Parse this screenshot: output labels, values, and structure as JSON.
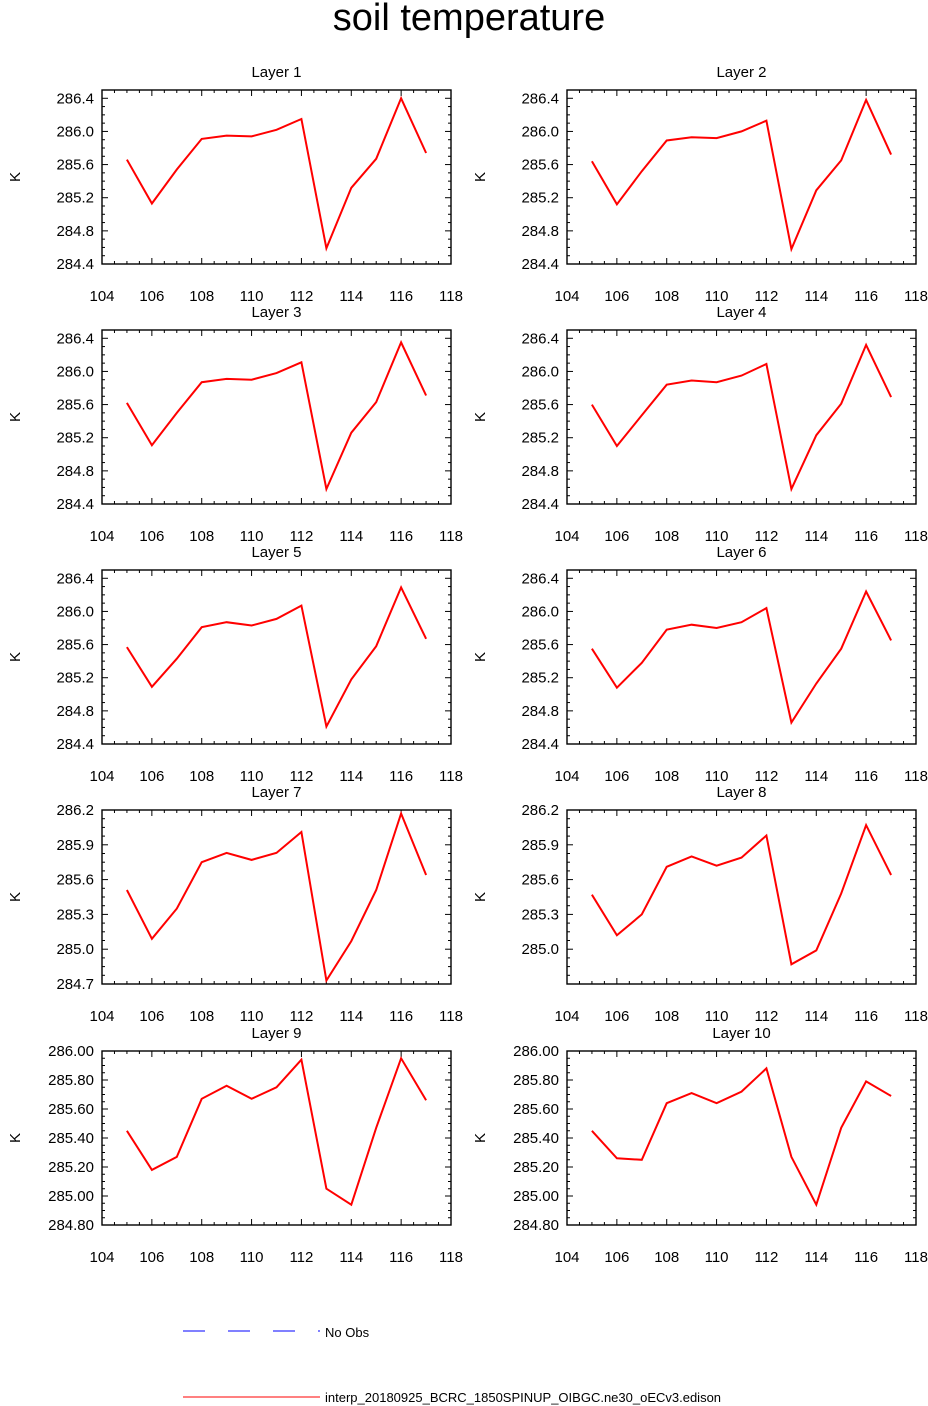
{
  "title": "soil temperature",
  "colors": {
    "model": "#ff0000",
    "obs": "#0000ff"
  },
  "legend": {
    "obs_label": "No Obs",
    "model_label": "interp_20180925_BCRC_1850SPINUP_OIBGC.ne30_oECv3.edison"
  },
  "chart_data": [
    {
      "type": "line",
      "title": "Layer 1",
      "ylabel": "K",
      "xlabel": "",
      "xlim": [
        104,
        118
      ],
      "ylim": [
        284.4,
        286.5
      ],
      "xticks": [
        104,
        106,
        108,
        110,
        112,
        114,
        116,
        118
      ],
      "yticks": [
        284.4,
        284.8,
        285.2,
        285.6,
        286.0,
        286.4
      ],
      "ydec": 1,
      "series": [
        {
          "name": "interp_20180925_BCRC_1850SPINUP_OIBGC.ne30_oECv3.edison",
          "x": [
            105,
            106,
            107,
            108,
            109,
            110,
            111,
            112,
            113,
            114,
            115,
            116,
            117
          ],
          "values": [
            285.66,
            285.13,
            285.54,
            285.91,
            285.95,
            285.94,
            286.02,
            286.15,
            284.59,
            285.32,
            285.67,
            286.4,
            285.74
          ]
        }
      ]
    },
    {
      "type": "line",
      "title": "Layer 2",
      "ylabel": "K",
      "xlabel": "",
      "xlim": [
        104,
        118
      ],
      "ylim": [
        284.4,
        286.5
      ],
      "xticks": [
        104,
        106,
        108,
        110,
        112,
        114,
        116,
        118
      ],
      "yticks": [
        284.4,
        284.8,
        285.2,
        285.6,
        286.0,
        286.4
      ],
      "ydec": 1,
      "series": [
        {
          "name": "interp_20180925_BCRC_1850SPINUP_OIBGC.ne30_oECv3.edison",
          "x": [
            105,
            106,
            107,
            108,
            109,
            110,
            111,
            112,
            113,
            114,
            115,
            116,
            117
          ],
          "values": [
            285.64,
            285.12,
            285.52,
            285.89,
            285.93,
            285.92,
            286.0,
            286.13,
            284.58,
            285.29,
            285.65,
            286.38,
            285.72
          ]
        }
      ]
    },
    {
      "type": "line",
      "title": "Layer 3",
      "ylabel": "K",
      "xlabel": "",
      "xlim": [
        104,
        118
      ],
      "ylim": [
        284.4,
        286.5
      ],
      "xticks": [
        104,
        106,
        108,
        110,
        112,
        114,
        116,
        118
      ],
      "yticks": [
        284.4,
        284.8,
        285.2,
        285.6,
        286.0,
        286.4
      ],
      "ydec": 1,
      "series": [
        {
          "name": "interp_20180925_BCRC_1850SPINUP_OIBGC.ne30_oECv3.edison",
          "x": [
            105,
            106,
            107,
            108,
            109,
            110,
            111,
            112,
            113,
            114,
            115,
            116,
            117
          ],
          "values": [
            285.62,
            285.11,
            285.5,
            285.87,
            285.91,
            285.9,
            285.98,
            286.11,
            284.58,
            285.26,
            285.63,
            286.35,
            285.71
          ]
        }
      ]
    },
    {
      "type": "line",
      "title": "Layer 4",
      "ylabel": "K",
      "xlabel": "",
      "xlim": [
        104,
        118
      ],
      "ylim": [
        284.4,
        286.5
      ],
      "xticks": [
        104,
        106,
        108,
        110,
        112,
        114,
        116,
        118
      ],
      "yticks": [
        284.4,
        284.8,
        285.2,
        285.6,
        286.0,
        286.4
      ],
      "ydec": 1,
      "series": [
        {
          "name": "interp_20180925_BCRC_1850SPINUP_OIBGC.ne30_oECv3.edison",
          "x": [
            105,
            106,
            107,
            108,
            109,
            110,
            111,
            112,
            113,
            114,
            115,
            116,
            117
          ],
          "values": [
            285.6,
            285.1,
            285.47,
            285.84,
            285.89,
            285.87,
            285.95,
            286.09,
            284.58,
            285.23,
            285.61,
            286.32,
            285.69
          ]
        }
      ]
    },
    {
      "type": "line",
      "title": "Layer 5",
      "ylabel": "K",
      "xlabel": "",
      "xlim": [
        104,
        118
      ],
      "ylim": [
        284.4,
        286.5
      ],
      "xticks": [
        104,
        106,
        108,
        110,
        112,
        114,
        116,
        118
      ],
      "yticks": [
        284.4,
        284.8,
        285.2,
        285.6,
        286.0,
        286.4
      ],
      "ydec": 1,
      "series": [
        {
          "name": "interp_20180925_BCRC_1850SPINUP_OIBGC.ne30_oECv3.edison",
          "x": [
            105,
            106,
            107,
            108,
            109,
            110,
            111,
            112,
            113,
            114,
            115,
            116,
            117
          ],
          "values": [
            285.57,
            285.09,
            285.43,
            285.81,
            285.87,
            285.83,
            285.91,
            286.07,
            284.61,
            285.18,
            285.58,
            286.29,
            285.67
          ]
        }
      ]
    },
    {
      "type": "line",
      "title": "Layer 6",
      "ylabel": "K",
      "xlabel": "",
      "xlim": [
        104,
        118
      ],
      "ylim": [
        284.4,
        286.5
      ],
      "xticks": [
        104,
        106,
        108,
        110,
        112,
        114,
        116,
        118
      ],
      "yticks": [
        284.4,
        284.8,
        285.2,
        285.6,
        286.0,
        286.4
      ],
      "ydec": 1,
      "series": [
        {
          "name": "interp_20180925_BCRC_1850SPINUP_OIBGC.ne30_oECv3.edison",
          "x": [
            105,
            106,
            107,
            108,
            109,
            110,
            111,
            112,
            113,
            114,
            115,
            116,
            117
          ],
          "values": [
            285.55,
            285.08,
            285.38,
            285.78,
            285.84,
            285.8,
            285.87,
            286.04,
            284.66,
            285.13,
            285.55,
            286.24,
            285.65
          ]
        }
      ]
    },
    {
      "type": "line",
      "title": "Layer 7",
      "ylabel": "K",
      "xlabel": "",
      "xlim": [
        104,
        118
      ],
      "ylim": [
        284.7,
        286.2
      ],
      "xticks": [
        104,
        106,
        108,
        110,
        112,
        114,
        116,
        118
      ],
      "yticks": [
        284.7,
        285.0,
        285.3,
        285.6,
        285.9,
        286.2
      ],
      "ydec": 1,
      "series": [
        {
          "name": "interp_20180925_BCRC_1850SPINUP_OIBGC.ne30_oECv3.edison",
          "x": [
            105,
            106,
            107,
            108,
            109,
            110,
            111,
            112,
            113,
            114,
            115,
            116,
            117
          ],
          "values": [
            285.51,
            285.09,
            285.35,
            285.75,
            285.83,
            285.77,
            285.83,
            286.01,
            284.73,
            285.07,
            285.51,
            286.17,
            285.64
          ]
        }
      ]
    },
    {
      "type": "line",
      "title": "Layer 8",
      "ylabel": "K",
      "xlabel": "",
      "xlim": [
        104,
        118
      ],
      "ylim": [
        284.7,
        286.2
      ],
      "xticks": [
        104,
        106,
        108,
        110,
        112,
        114,
        116,
        118
      ],
      "yticks": [
        285.0,
        285.3,
        285.6,
        285.9,
        286.2
      ],
      "ydec": 1,
      "series": [
        {
          "name": "interp_20180925_BCRC_1850SPINUP_OIBGC.ne30_oECv3.edison",
          "x": [
            105,
            106,
            107,
            108,
            109,
            110,
            111,
            112,
            113,
            114,
            115,
            116,
            117
          ],
          "values": [
            285.47,
            285.12,
            285.3,
            285.71,
            285.8,
            285.72,
            285.79,
            285.98,
            284.87,
            284.99,
            285.48,
            286.07,
            285.64
          ]
        }
      ]
    },
    {
      "type": "line",
      "title": "Layer 9",
      "ylabel": "K",
      "xlabel": "",
      "xlim": [
        104,
        118
      ],
      "ylim": [
        284.8,
        286.0
      ],
      "xticks": [
        104,
        106,
        108,
        110,
        112,
        114,
        116,
        118
      ],
      "yticks": [
        284.8,
        285.0,
        285.2,
        285.4,
        285.6,
        285.8,
        286.0
      ],
      "ydec": 2,
      "series": [
        {
          "name": "interp_20180925_BCRC_1850SPINUP_OIBGC.ne30_oECv3.edison",
          "x": [
            105,
            106,
            107,
            108,
            109,
            110,
            111,
            112,
            113,
            114,
            115,
            116,
            117
          ],
          "values": [
            285.45,
            285.18,
            285.27,
            285.67,
            285.76,
            285.67,
            285.75,
            285.94,
            285.05,
            284.94,
            285.47,
            285.95,
            285.66
          ]
        }
      ]
    },
    {
      "type": "line",
      "title": "Layer 10",
      "ylabel": "K",
      "xlabel": "",
      "xlim": [
        104,
        118
      ],
      "ylim": [
        284.8,
        286.0
      ],
      "xticks": [
        104,
        106,
        108,
        110,
        112,
        114,
        116,
        118
      ],
      "yticks": [
        284.8,
        285.0,
        285.2,
        285.4,
        285.6,
        285.8,
        286.0
      ],
      "ydec": 2,
      "series": [
        {
          "name": "interp_20180925_BCRC_1850SPINUP_OIBGC.ne30_oECv3.edison",
          "x": [
            105,
            106,
            107,
            108,
            109,
            110,
            111,
            112,
            113,
            114,
            115,
            116,
            117
          ],
          "values": [
            285.45,
            285.26,
            285.25,
            285.64,
            285.71,
            285.64,
            285.72,
            285.88,
            285.27,
            284.94,
            285.47,
            285.79,
            285.69
          ]
        }
      ]
    }
  ]
}
